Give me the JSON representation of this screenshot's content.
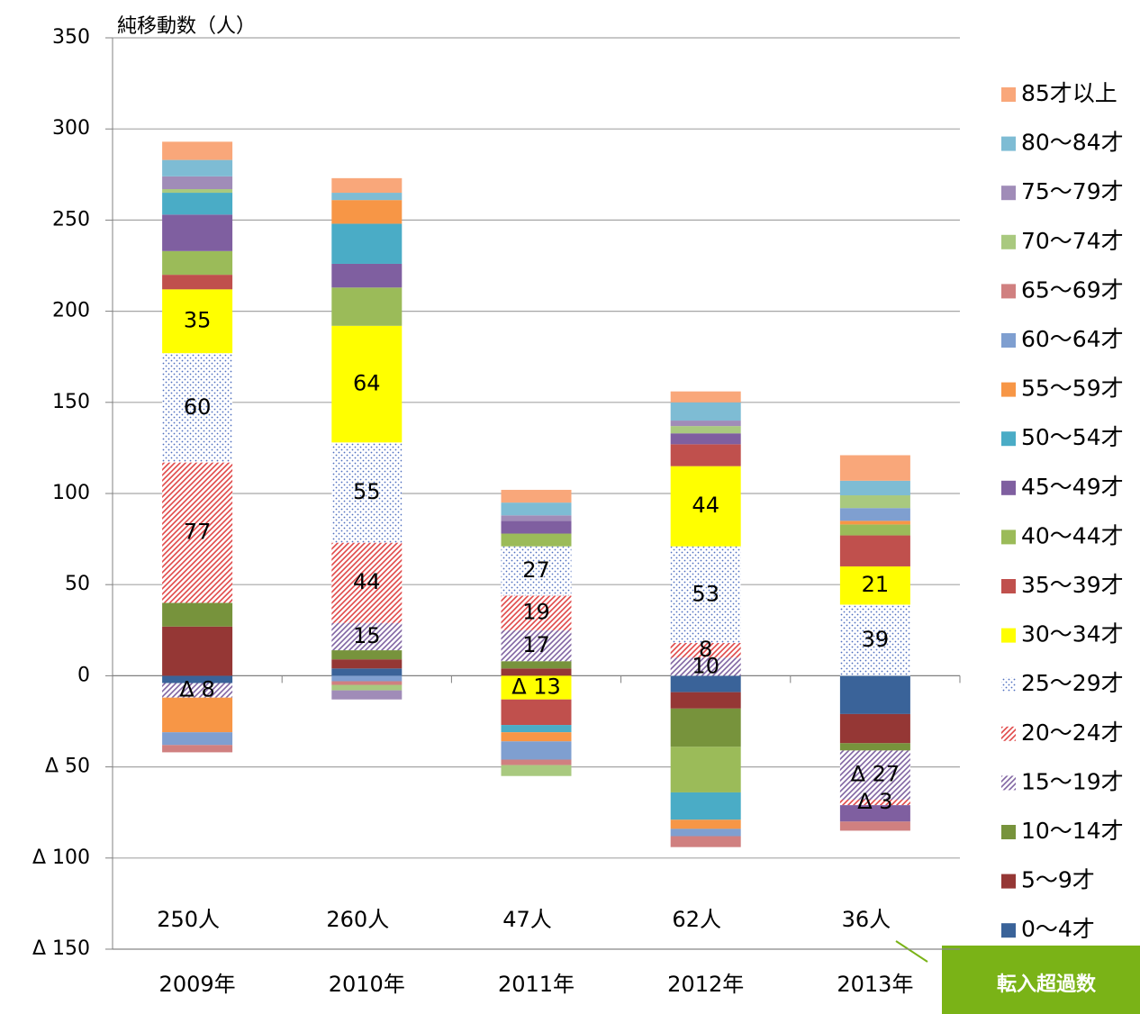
{
  "chart_data": {
    "type": "stacked_bar",
    "y_label": "純移動数（人）",
    "categories": [
      "2009年",
      "2010年",
      "2011年",
      "2012年",
      "2013年"
    ],
    "totals": [
      "250人",
      "260人",
      "47人",
      "62人",
      "36人"
    ],
    "totals_note": "転入超過数",
    "ylim": [
      -150,
      350
    ],
    "yticks": [
      350,
      300,
      250,
      200,
      150,
      100,
      50,
      0,
      {
        "value": -50,
        "label": "Δ 50"
      },
      {
        "value": -100,
        "label": "Δ 100"
      },
      {
        "value": -150,
        "label": "Δ 150"
      }
    ],
    "grid": true,
    "legend": "right",
    "series": [
      {
        "name": "0〜4才",
        "color": "#3a6399",
        "values": [
          -4,
          4,
          0,
          -9,
          -21
        ]
      },
      {
        "name": "5〜9才",
        "color": "#953735",
        "values": [
          27,
          5,
          4,
          -9,
          -16
        ]
      },
      {
        "name": "10〜14才",
        "color": "#77933c",
        "values": [
          13,
          5,
          4,
          -21,
          -4
        ]
      },
      {
        "name": "15〜19才",
        "color": "#8064a2",
        "pattern": "hatch",
        "values": [
          -8,
          15,
          17,
          10,
          -27
        ],
        "value_labels": [
          "Δ 8",
          "15",
          "17",
          "10",
          "Δ 27"
        ]
      },
      {
        "name": "20〜24才",
        "color": "#e04848",
        "pattern": "hatch",
        "values": [
          77,
          44,
          19,
          8,
          -3
        ],
        "value_labels": [
          "77",
          "44",
          "19",
          "8",
          "Δ 3"
        ]
      },
      {
        "name": "25〜29才",
        "color": "#4f6fbf",
        "pattern": "dots",
        "values": [
          60,
          55,
          27,
          53,
          39
        ],
        "value_labels": [
          "60",
          "55",
          "27",
          "53",
          "39"
        ]
      },
      {
        "name": "30〜34才",
        "color": "#ffff00",
        "values": [
          35,
          64,
          -13,
          44,
          21
        ],
        "value_labels": [
          "35",
          "64",
          "Δ 13",
          "44",
          "21"
        ]
      },
      {
        "name": "35〜39才",
        "color": "#c0504d",
        "values": [
          8,
          0,
          -14,
          12,
          17
        ]
      },
      {
        "name": "40〜44才",
        "color": "#9bbb59",
        "values": [
          13,
          21,
          7,
          -25,
          6
        ]
      },
      {
        "name": "45〜49才",
        "color": "#7f5fa0",
        "values": [
          20,
          13,
          7,
          6,
          -9
        ]
      },
      {
        "name": "50〜54才",
        "color": "#4aacc6",
        "values": [
          12,
          22,
          -4,
          -15,
          0
        ]
      },
      {
        "name": "55〜59才",
        "color": "#f79646",
        "values": [
          -19,
          13,
          -5,
          -5,
          2
        ]
      },
      {
        "name": "60〜64才",
        "color": "#7f9fd0",
        "values": [
          -7,
          -3,
          -10,
          -4,
          7
        ]
      },
      {
        "name": "65〜69才",
        "color": "#d08080",
        "values": [
          -4,
          -2,
          -3,
          -6,
          -5
        ]
      },
      {
        "name": "70〜74才",
        "color": "#a9c97f",
        "values": [
          2,
          -3,
          -6,
          4,
          7
        ]
      },
      {
        "name": "75〜79才",
        "color": "#a08cb8",
        "values": [
          7,
          -5,
          3,
          3,
          0
        ]
      },
      {
        "name": "80〜84才",
        "color": "#7ebcd4",
        "values": [
          9,
          4,
          7,
          10,
          8
        ]
      },
      {
        "name": "85才以上",
        "color": "#f9a77a",
        "values": [
          10,
          8,
          7,
          6,
          14
        ]
      }
    ]
  }
}
